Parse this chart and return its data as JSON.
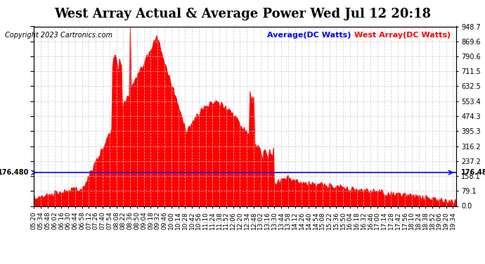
{
  "title": "West Array Actual & Average Power Wed Jul 12 20:18",
  "copyright": "Copyright 2023 Cartronics.com",
  "legend_avg": "Average(DC Watts)",
  "legend_west": "West Array(DC Watts)",
  "avg_value": 176.48,
  "ymax": 948.7,
  "ymin": 0.0,
  "yticks": [
    0.0,
    79.1,
    158.1,
    237.2,
    316.2,
    395.3,
    474.3,
    553.4,
    632.5,
    711.5,
    790.6,
    869.6,
    948.7
  ],
  "title_fontsize": 13,
  "bg_color": "#ffffff",
  "plot_bg_color": "#ffffff",
  "grid_color": "#cccccc",
  "red_color": "#ff0000",
  "blue_color": "#0000ff"
}
